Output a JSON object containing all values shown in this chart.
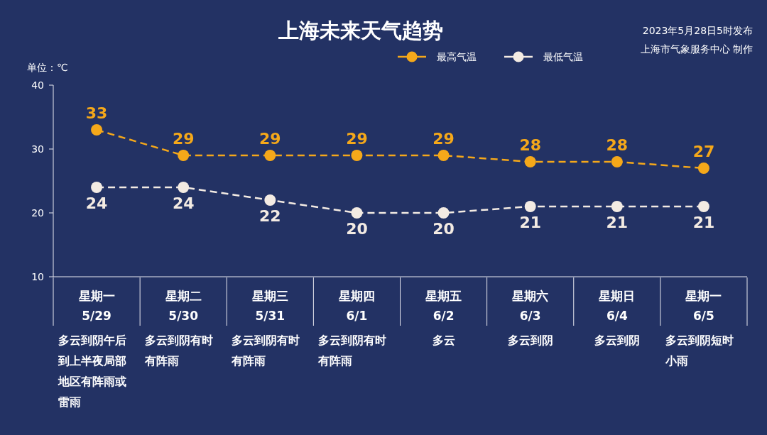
{
  "chart_data": {
    "type": "line",
    "title": "上海未来天气趋势",
    "ylabel": "单位：℃",
    "categories": [
      "星期一\n5/29",
      "星期二\n5/30",
      "星期三\n5/31",
      "星期四\n6/1",
      "星期五\n6/2",
      "星期六\n6/3",
      "星期日\n6/4",
      "星期一\n6/5"
    ],
    "series": [
      {
        "name": "最高气温",
        "color": "#f5a81a",
        "values": [
          33,
          29,
          29,
          29,
          29,
          28,
          28,
          27
        ]
      },
      {
        "name": "最低气温",
        "color": "#f3ebe3",
        "values": [
          24,
          24,
          22,
          20,
          20,
          21,
          21,
          21
        ]
      }
    ],
    "ylim": [
      10,
      40
    ],
    "yticks": [
      10,
      20,
      30,
      40
    ],
    "legend": "top right",
    "marker": "circle",
    "line_style": "dashed",
    "data_labels": true,
    "annotations": [
      "2023年5月28日5时发布",
      "上海市气象服务中心 制作",
      "多云到阴午后到上半夜局部地区有阵雨或雷雨",
      "多云到阴有时有阵雨",
      "多云到阴有时有阵雨",
      "多云到阴有时有阵雨",
      "多云",
      "多云到阴",
      "多云到阴",
      "多云到阴短时小雨"
    ]
  }
}
